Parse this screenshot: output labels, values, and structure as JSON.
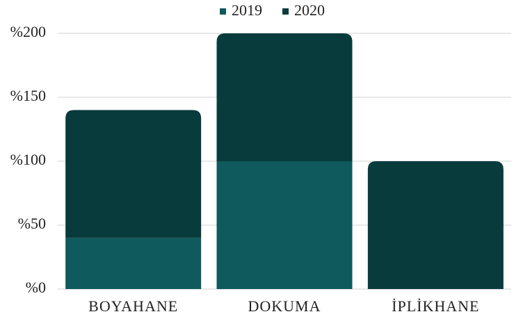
{
  "chart_data": {
    "type": "stacked_bar",
    "categories": [
      "BOYAHANE",
      "DOKUMA",
      "İPLİKHANE"
    ],
    "series": [
      {
        "name": "2019",
        "color": "#0e5a5c",
        "values": [
          40,
          100,
          0
        ]
      },
      {
        "name": "2020",
        "color": "#083b3c",
        "values": [
          100,
          100,
          100
        ]
      }
    ],
    "ylim": [
      0,
      200
    ],
    "yticks": [
      {
        "value": 0,
        "label": "%0"
      },
      {
        "value": 50,
        "label": "%50"
      },
      {
        "value": 100,
        "label": "%100"
      },
      {
        "value": 150,
        "label": "%150"
      },
      {
        "value": 200,
        "label": "%200"
      }
    ],
    "grid": true,
    "legend": "top"
  }
}
